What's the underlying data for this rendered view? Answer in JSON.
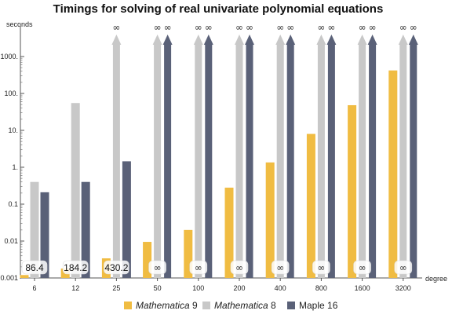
{
  "chart_data": {
    "type": "bar",
    "title": "Timings for solving of real univariate polynomial equations",
    "ylabel": "seconds",
    "xlabel": "degree",
    "yscale": "log",
    "ylim": [
      0.001,
      1000
    ],
    "yticks": [
      "0.001",
      "0.01",
      "0.1",
      "1.",
      "10.",
      "100.",
      "1000."
    ],
    "categories": [
      "6",
      "12",
      "25",
      "50",
      "100",
      "200",
      "400",
      "800",
      "1600",
      "3200"
    ],
    "series": [
      {
        "name": "Mathematica 9",
        "color": "#F0BC42",
        "values": [
          0.0012,
          0.0018,
          0.0034,
          0.0095,
          0.02,
          0.28,
          1.35,
          8.0,
          48.0,
          420.0
        ]
      },
      {
        "name": "Mathematica 8",
        "color": "#C8C8C8",
        "values": [
          0.4,
          55.0,
          "inf",
          "inf",
          "inf",
          "inf",
          "inf",
          "inf",
          "inf",
          "inf"
        ]
      },
      {
        "name": "Maple 16",
        "color": "#5A6178",
        "values": [
          0.21,
          0.4,
          1.45,
          "inf",
          "inf",
          "inf",
          "inf",
          "inf",
          "inf",
          "inf"
        ]
      }
    ],
    "infinity_symbol": "∞",
    "ratio_labels": [
      "86.4",
      "184.2",
      "430.2",
      "∞",
      "∞",
      "∞",
      "∞",
      "∞",
      "∞",
      "∞"
    ],
    "legend_position": "bottom"
  }
}
